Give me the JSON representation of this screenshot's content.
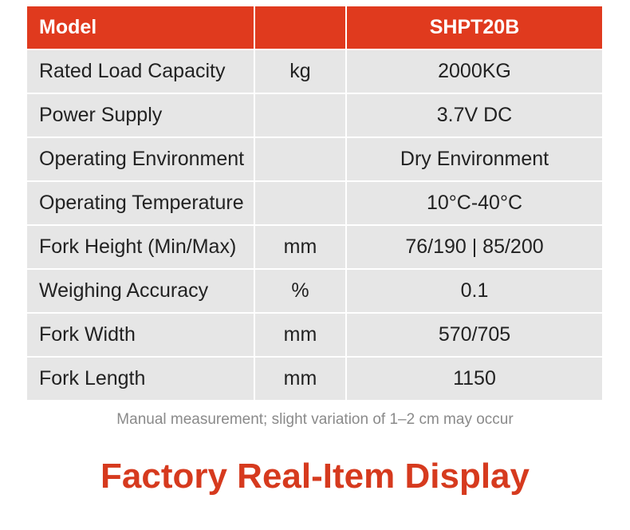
{
  "table": {
    "header": {
      "label": "Model",
      "value": "SHPT20B"
    },
    "rows": [
      {
        "label": "Rated Load Capacity",
        "unit": "kg",
        "value": "2000KG"
      },
      {
        "label": "Power Supply",
        "value": "3.7V DC"
      },
      {
        "label": "Operating Environment",
        "value": "Dry Environment"
      },
      {
        "label": "Operating Temperature",
        "value": "10°C-40°C"
      },
      {
        "label": "Fork Height (Min/Max)",
        "unit": "mm",
        "value": "76/190 | 85/200"
      },
      {
        "label": "Weighing Accuracy",
        "unit": "%",
        "value": "0.1"
      },
      {
        "label": "Fork Width",
        "unit": "mm",
        "value": "570/705"
      },
      {
        "label": "Fork Length",
        "unit": "mm",
        "value": "1150"
      }
    ]
  },
  "note": "Manual measurement; slight variation of 1–2 cm may occur",
  "title": "Factory Real-Item Display"
}
